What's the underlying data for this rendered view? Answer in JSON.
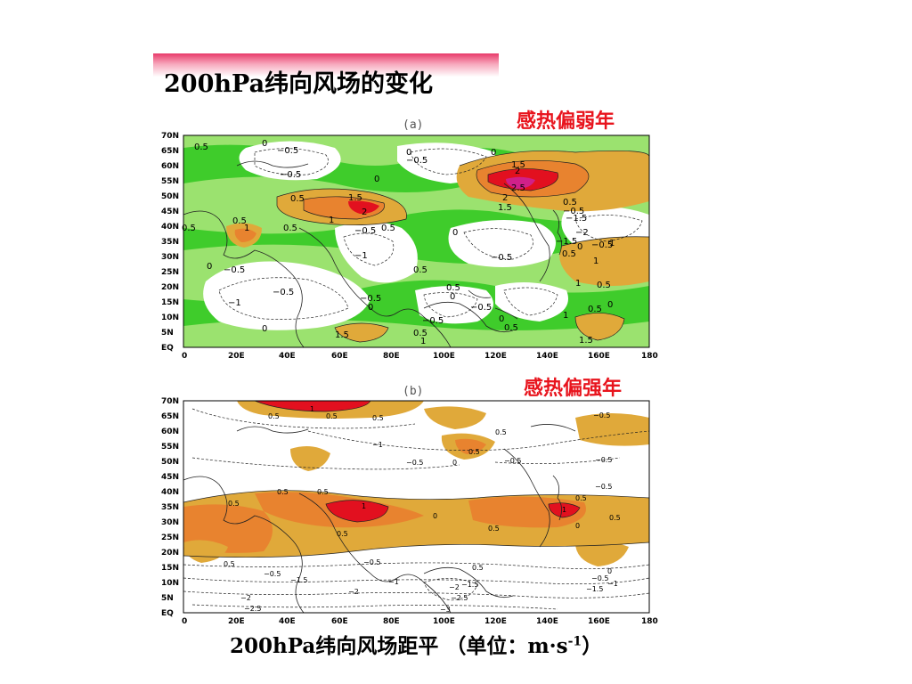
{
  "slide": {
    "title": "200hPa纬向风场的变化",
    "caption_main": "200hPa纬向风场距平 （单位：m·s",
    "caption_sup": "-1",
    "caption_end": "）"
  },
  "panel_a": {
    "label": "(a)",
    "case": "感热偏弱年"
  },
  "panel_b": {
    "label": "(b)",
    "case": "感热偏强年"
  },
  "axes": {
    "lat_ticks": [
      "70N",
      "65N",
      "60N",
      "55N",
      "50N",
      "45N",
      "40N",
      "35N",
      "30N",
      "25N",
      "20N",
      "15N",
      "10N",
      "5N",
      "EQ"
    ],
    "lon_ticks": [
      "0",
      "20E",
      "40E",
      "60E",
      "80E",
      "100E",
      "120E",
      "140E",
      "160E",
      "180"
    ]
  },
  "colors": {
    "title_accent": "#e83a6a",
    "case_label": "#e8141d",
    "green_light": "#9be26f",
    "green_dark": "#3fcc2b",
    "orange_light": "#e0a93a",
    "orange_mid": "#e8832f",
    "red": "#e2101f",
    "magenta": "#d0208a"
  }
}
